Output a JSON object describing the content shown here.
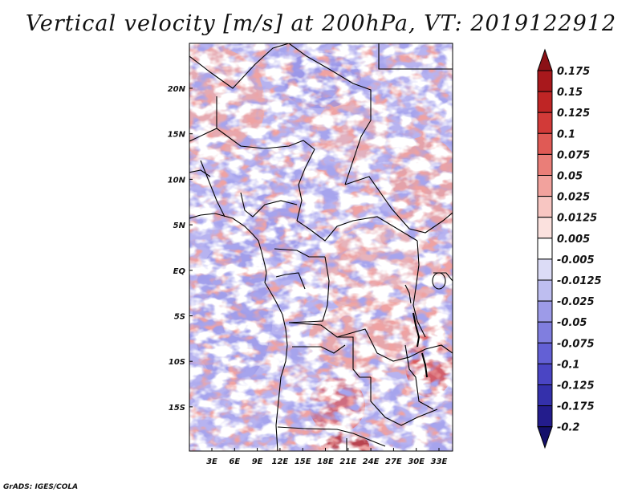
{
  "title": "Vertical velocity [m/s] at 200hPa, VT: 2019122912",
  "credit": "GrADS: IGES/COLA",
  "map": {
    "lat_labels": [
      "20N",
      "15N",
      "10N",
      "5N",
      "EQ",
      "5S",
      "10S",
      "15S"
    ],
    "lon_labels": [
      "3E",
      "6E",
      "9E",
      "12E",
      "15E",
      "18E",
      "21E",
      "24E",
      "27E",
      "30E",
      "33E"
    ]
  },
  "colorbar": {
    "labels": [
      "0.175",
      "0.15",
      "0.125",
      "0.1",
      "0.075",
      "0.05",
      "0.025",
      "0.0125",
      "0.005",
      "-0.005",
      "-0.0125",
      "-0.025",
      "-0.05",
      "-0.075",
      "-0.1",
      "-0.125",
      "-0.175",
      "-0.2"
    ],
    "colors": [
      "#8b1116",
      "#a8181c",
      "#bf2525",
      "#d23a38",
      "#e05a55",
      "#ea7e78",
      "#f2a29d",
      "#f8c6c2",
      "#fbe1de",
      "#ffffff",
      "#dcdcf6",
      "#bebef0",
      "#9d9be8",
      "#807edf",
      "#6360d5",
      "#4a45c4",
      "#3430ab",
      "#231c8c",
      "#14106a"
    ]
  }
}
